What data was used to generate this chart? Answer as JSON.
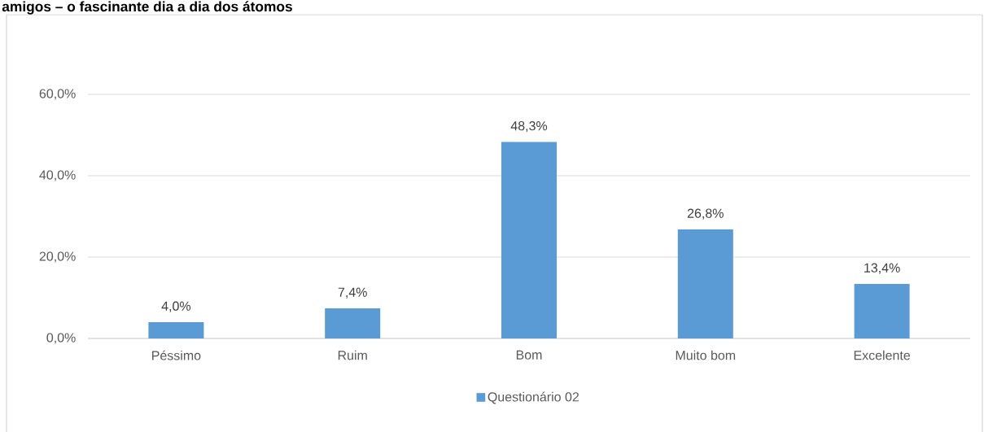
{
  "chart_data": {
    "type": "bar",
    "title": "amigos – o fascinante dia a dia dos átomos",
    "categories": [
      "Péssimo",
      "Ruim",
      "Bom",
      "Muito bom",
      "Excelente"
    ],
    "series": [
      {
        "name": "Questionário 02",
        "color": "#5b9bd5",
        "values": [
          4.0,
          7.4,
          48.3,
          26.8,
          13.4
        ],
        "value_labels": [
          "4,0%",
          "7,4%",
          "48,3%",
          "26,8%",
          "13,4%"
        ]
      }
    ],
    "ylim": [
      0,
      60
    ],
    "yticks": [
      {
        "value": 0,
        "label": "0,0%"
      },
      {
        "value": 20,
        "label": "20,0%"
      },
      {
        "value": 40,
        "label": "40,0%"
      },
      {
        "value": 60,
        "label": "60,0%"
      }
    ],
    "grid": "y",
    "legend": "bottom"
  }
}
